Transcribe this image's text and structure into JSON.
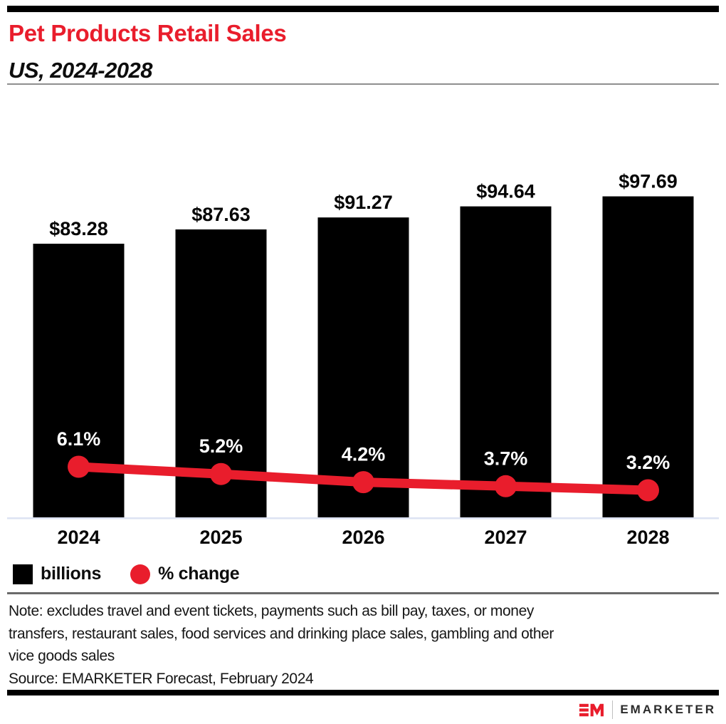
{
  "header": {
    "title": "Pet Products Retail Sales",
    "subtitle": "US, 2024-2028"
  },
  "chart_data": {
    "type": "bar",
    "categories": [
      "2024",
      "2025",
      "2026",
      "2027",
      "2028"
    ],
    "series": [
      {
        "name": "billions",
        "type": "bar",
        "values": [
          83.28,
          87.63,
          91.27,
          94.64,
          97.69
        ],
        "labels": [
          "$83.28",
          "$87.63",
          "$91.27",
          "$94.64",
          "$97.69"
        ],
        "color": "#000000"
      },
      {
        "name": "% change",
        "type": "line",
        "values": [
          6.1,
          5.2,
          4.2,
          3.7,
          3.2
        ],
        "labels": [
          "6.1%",
          "5.2%",
          "4.2%",
          "3.7%",
          "3.2%"
        ],
        "color": "#E91D2C"
      }
    ],
    "title": "Pet Products Retail Sales",
    "xlabel": "",
    "ylabel": "",
    "grid": false,
    "legend_position": "bottom"
  },
  "legend": {
    "items": [
      {
        "label": "billions",
        "swatch": "black-square"
      },
      {
        "label": "% change",
        "swatch": "red-circle"
      }
    ]
  },
  "notes": {
    "line1": "Note: excludes travel and event tickets, payments such as bill pay, taxes, or money",
    "line2": "transfers, restaurant sales, food services and drinking place sales, gambling and other",
    "line3": "vice goods sales",
    "source": "Source: EMARKETER Forecast, February 2024"
  },
  "footer": {
    "logo_text": "EMARKETER"
  },
  "colors": {
    "accent_red": "#E91D2C",
    "bar_black": "#000000",
    "axis_line": "#dde3f3",
    "pct_label": "#ffffff"
  }
}
